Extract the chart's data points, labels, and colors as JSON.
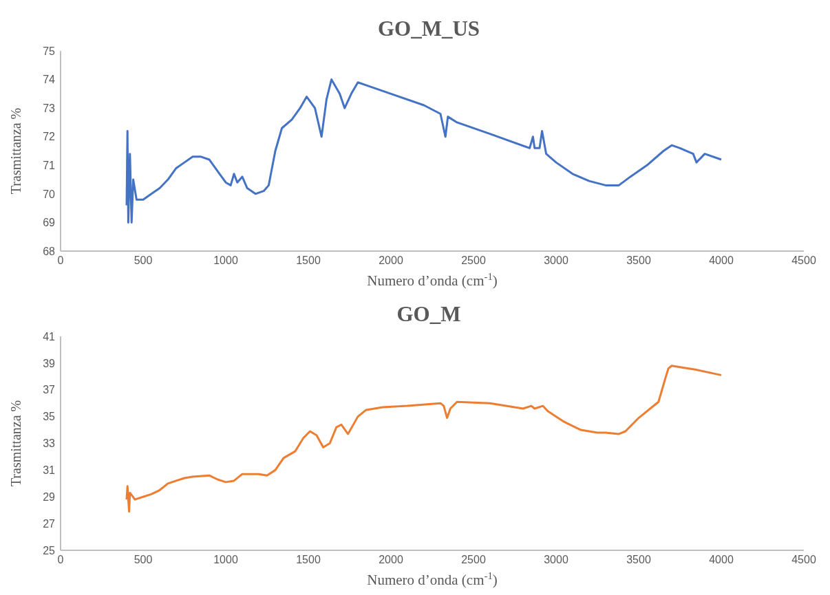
{
  "chart_data": [
    {
      "type": "line",
      "title": "GO_M_US",
      "xlabel": "Numero d’onda (cm$^{-1}$)",
      "ylabel": "Trasmittanza %",
      "xlim": [
        0,
        4500
      ],
      "xticks": [
        0,
        500,
        1000,
        1500,
        2000,
        2500,
        3000,
        3500,
        4000,
        4500
      ],
      "ylim": [
        68,
        75
      ],
      "yticks": [
        68,
        69,
        70,
        71,
        72,
        73,
        74,
        75
      ],
      "grid": false,
      "legend": false,
      "marker": "none",
      "line_style": "solid",
      "series": [
        {
          "color": "#4472c4",
          "x": [
            400,
            405,
            410,
            420,
            430,
            440,
            460,
            500,
            550,
            600,
            650,
            700,
            750,
            800,
            850,
            900,
            950,
            1000,
            1030,
            1050,
            1070,
            1100,
            1130,
            1180,
            1230,
            1260,
            1300,
            1340,
            1400,
            1450,
            1490,
            1540,
            1580,
            1610,
            1640,
            1690,
            1720,
            1760,
            1800,
            1850,
            2000,
            2200,
            2300,
            2330,
            2345,
            2400,
            2600,
            2840,
            2860,
            2870,
            2900,
            2915,
            2940,
            3000,
            3100,
            3200,
            3300,
            3380,
            3450,
            3550,
            3650,
            3700,
            3750,
            3830,
            3850,
            3900,
            4000
          ],
          "values": [
            69.6,
            72.2,
            69.0,
            71.4,
            69.0,
            70.5,
            69.8,
            69.8,
            70.0,
            70.2,
            70.5,
            70.9,
            71.1,
            71.3,
            71.3,
            71.2,
            70.8,
            70.4,
            70.3,
            70.7,
            70.4,
            70.6,
            70.2,
            70.0,
            70.1,
            70.3,
            71.5,
            72.3,
            72.6,
            73.0,
            73.4,
            73.0,
            72.0,
            73.3,
            74.0,
            73.5,
            73.0,
            73.5,
            73.9,
            73.8,
            73.5,
            73.1,
            72.8,
            72.0,
            72.7,
            72.5,
            72.1,
            71.6,
            72.0,
            71.6,
            71.6,
            72.2,
            71.4,
            71.1,
            70.7,
            70.45,
            70.3,
            70.3,
            70.6,
            71.0,
            71.5,
            71.7,
            71.6,
            71.4,
            71.1,
            71.4,
            71.2
          ]
        }
      ]
    },
    {
      "type": "line",
      "title": "GO_M",
      "xlabel": "Numero d’onda (cm$^{-1}$)",
      "ylabel": "Trasmittanza %",
      "xlim": [
        0,
        4500
      ],
      "xticks": [
        0,
        500,
        1000,
        1500,
        2000,
        2500,
        3000,
        3500,
        4000,
        4500
      ],
      "ylim": [
        25,
        41
      ],
      "yticks": [
        25,
        27,
        29,
        31,
        33,
        35,
        37,
        39,
        41
      ],
      "grid": false,
      "legend": false,
      "marker": "none",
      "line_style": "solid",
      "series": [
        {
          "color": "#ed7d31",
          "x": [
            400,
            405,
            415,
            420,
            450,
            500,
            550,
            600,
            650,
            700,
            750,
            800,
            900,
            950,
            1000,
            1050,
            1100,
            1200,
            1250,
            1300,
            1350,
            1420,
            1470,
            1510,
            1550,
            1590,
            1630,
            1670,
            1700,
            1740,
            1800,
            1850,
            1950,
            2100,
            2300,
            2320,
            2340,
            2360,
            2400,
            2600,
            2800,
            2850,
            2870,
            2920,
            2950,
            3050,
            3150,
            3250,
            3300,
            3380,
            3420,
            3500,
            3580,
            3620,
            3660,
            3680,
            3700,
            3750,
            3850,
            4000
          ],
          "values": [
            28.8,
            29.8,
            27.9,
            29.3,
            28.8,
            29.0,
            29.2,
            29.5,
            30.0,
            30.2,
            30.4,
            30.5,
            30.6,
            30.3,
            30.1,
            30.2,
            30.7,
            30.7,
            30.6,
            31.0,
            31.9,
            32.4,
            33.4,
            33.9,
            33.6,
            32.7,
            33.0,
            34.2,
            34.4,
            33.7,
            35.0,
            35.5,
            35.7,
            35.8,
            36.0,
            35.8,
            34.9,
            35.6,
            36.1,
            36.0,
            35.6,
            35.8,
            35.6,
            35.8,
            35.4,
            34.6,
            34.0,
            33.8,
            33.8,
            33.7,
            33.9,
            34.9,
            35.7,
            36.1,
            37.8,
            38.6,
            38.8,
            38.7,
            38.5,
            38.1
          ]
        }
      ]
    }
  ]
}
